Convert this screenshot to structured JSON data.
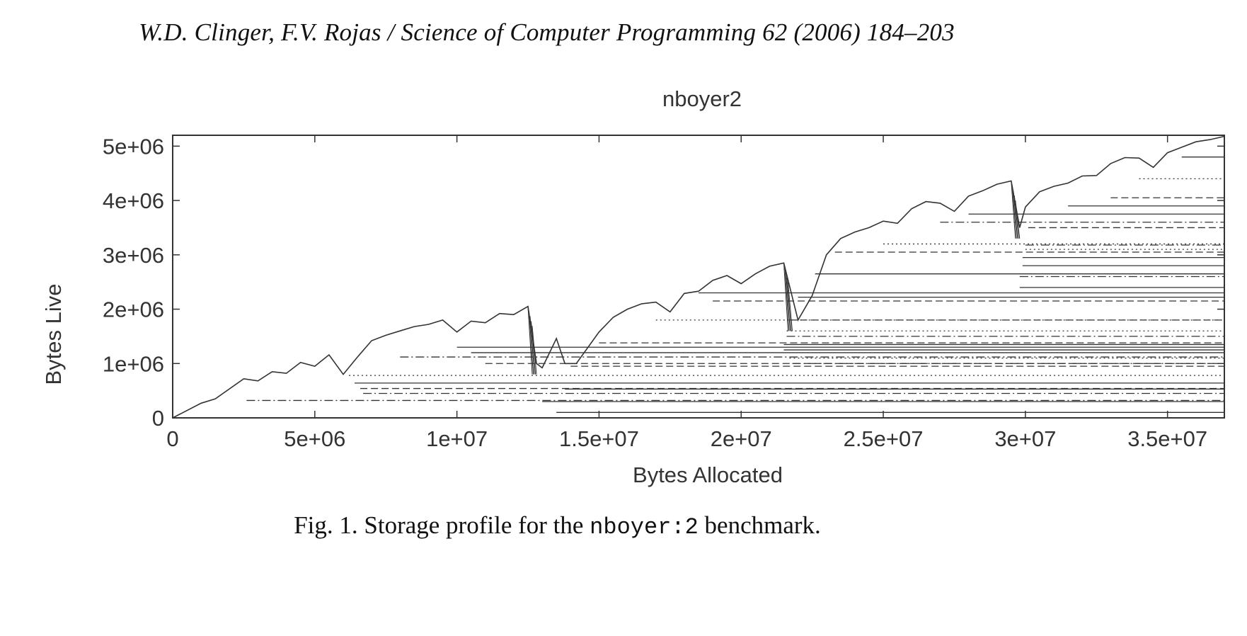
{
  "page": {
    "running_head": "W.D. Clinger, F.V. Rojas / Science of Computer Programming 62 (2006) 184–203",
    "caption": {
      "prefix": "Fig. 1. Storage profile for the ",
      "code": "nboyer:2",
      "suffix": " benchmark."
    }
  },
  "chart_data": {
    "type": "area",
    "title": "nboyer2",
    "xlabel": "Bytes Allocated",
    "ylabel": "Bytes Live",
    "xlim": [
      0,
      37000000
    ],
    "ylim": [
      0,
      5200000
    ],
    "x_ticks": [
      {
        "value": 0,
        "label": "0"
      },
      {
        "value": 5000000,
        "label": "5e+06"
      },
      {
        "value": 10000000,
        "label": "1e+07"
      },
      {
        "value": 15000000,
        "label": "1.5e+07"
      },
      {
        "value": 20000000,
        "label": "2e+07"
      },
      {
        "value": 25000000,
        "label": "2.5e+07"
      },
      {
        "value": 30000000,
        "label": "3e+07"
      },
      {
        "value": 35000000,
        "label": "3.5e+07"
      }
    ],
    "y_ticks": [
      {
        "value": 0,
        "label": "0"
      },
      {
        "value": 1000000,
        "label": "1e+06"
      },
      {
        "value": 2000000,
        "label": "2e+06"
      },
      {
        "value": 3000000,
        "label": "3e+06"
      },
      {
        "value": 4000000,
        "label": "4e+06"
      },
      {
        "value": 5000000,
        "label": "5e+06"
      }
    ],
    "grid": false,
    "legend": "none",
    "line_color": "#333333",
    "total_live": {
      "x": [
        0,
        1000000,
        1500000,
        2500000,
        3000000,
        3500000,
        4000000,
        4500000,
        5000000,
        5500000,
        6000000,
        6500000,
        7000000,
        7500000,
        8000000,
        8500000,
        9000000,
        9500000,
        10000000,
        10500000,
        11000000,
        11500000,
        12000000,
        12500000,
        12800000,
        13000000,
        13500000,
        13800000,
        14200000,
        15000000,
        15500000,
        16000000,
        16500000,
        17000000,
        17500000,
        18000000,
        18500000,
        19000000,
        19500000,
        20000000,
        20500000,
        21000000,
        21500000,
        22000000,
        22500000,
        23000000,
        23500000,
        24000000,
        24500000,
        25000000,
        25500000,
        26000000,
        26500000,
        27000000,
        27500000,
        28000000,
        28500000,
        29000000,
        29500000,
        29800000,
        30000000,
        30500000,
        31000000,
        31500000,
        32000000,
        32500000,
        33000000,
        33500000,
        34000000,
        34500000,
        35000000,
        35500000,
        36000000,
        36500000,
        37000000
      ],
      "y": [
        0,
        270000,
        350000,
        720000,
        680000,
        850000,
        820000,
        1020000,
        950000,
        1160000,
        800000,
        1120000,
        1420000,
        1520000,
        1600000,
        1680000,
        1720000,
        1800000,
        1580000,
        1780000,
        1750000,
        1920000,
        1900000,
        2050000,
        1000000,
        920000,
        1460000,
        1000000,
        1000000,
        1580000,
        1850000,
        2000000,
        2100000,
        2130000,
        1950000,
        2290000,
        2330000,
        2530000,
        2620000,
        2470000,
        2650000,
        2790000,
        2850000,
        1800000,
        2250000,
        3000000,
        3300000,
        3420000,
        3500000,
        3620000,
        3580000,
        3850000,
        3980000,
        3950000,
        3800000,
        4080000,
        4180000,
        4300000,
        4360000,
        3500000,
        3880000,
        4160000,
        4260000,
        4320000,
        4450000,
        4460000,
        4680000,
        4790000,
        4780000,
        4610000,
        4880000,
        4980000,
        5080000,
        5120000,
        5180000
      ]
    },
    "retained_levels": [
      {
        "x_start": 2600000,
        "value": 320000,
        "dash": "dashdot"
      },
      {
        "x_start": 6200000,
        "value": 780000,
        "dash": "dotted"
      },
      {
        "x_start": 6400000,
        "value": 640000,
        "dash": "solid"
      },
      {
        "x_start": 6600000,
        "value": 540000,
        "dash": "dashed"
      },
      {
        "x_start": 6700000,
        "value": 450000,
        "dash": "dashdot"
      },
      {
        "x_start": 8000000,
        "value": 1120000,
        "dash": "dashdot"
      },
      {
        "x_start": 10000000,
        "value": 1300000,
        "dash": "solid"
      },
      {
        "x_start": 10500000,
        "value": 1200000,
        "dash": "solid"
      },
      {
        "x_start": 11000000,
        "value": 1000000,
        "dash": "dashed"
      },
      {
        "x_start": 13000000,
        "value": 300000,
        "dash": "solid"
      },
      {
        "x_start": 13500000,
        "value": 100000,
        "dash": "solid"
      },
      {
        "x_start": 13800000,
        "value": 530000,
        "dash": "solid"
      },
      {
        "x_start": 14000000,
        "value": 950000,
        "dash": "dashed"
      },
      {
        "x_start": 15000000,
        "value": 1380000,
        "dash": "dashed"
      },
      {
        "x_start": 17000000,
        "value": 1800000,
        "dash": "dotted"
      },
      {
        "x_start": 18500000,
        "value": 2300000,
        "dash": "solid"
      },
      {
        "x_start": 19000000,
        "value": 2150000,
        "dash": "dashed"
      },
      {
        "x_start": 21500000,
        "value": 1250000,
        "dash": "solid"
      },
      {
        "x_start": 21500000,
        "value": 1350000,
        "dash": "solid"
      },
      {
        "x_start": 21600000,
        "value": 1500000,
        "dash": "dashdot"
      },
      {
        "x_start": 21600000,
        "value": 1600000,
        "dash": "dotted"
      },
      {
        "x_start": 21700000,
        "value": 1800000,
        "dash": "dashed"
      },
      {
        "x_start": 21700000,
        "value": 1100000,
        "dash": "dotted"
      },
      {
        "x_start": 21800000,
        "value": 1000000,
        "dash": "dashdot"
      },
      {
        "x_start": 22000000,
        "value": 2220000,
        "dash": "solid"
      },
      {
        "x_start": 22600000,
        "value": 2650000,
        "dash": "solid"
      },
      {
        "x_start": 23300000,
        "value": 3050000,
        "dash": "dashed"
      },
      {
        "x_start": 25000000,
        "value": 3200000,
        "dash": "dotted"
      },
      {
        "x_start": 27000000,
        "value": 3600000,
        "dash": "dashdot"
      },
      {
        "x_start": 28000000,
        "value": 3750000,
        "dash": "solid"
      },
      {
        "x_start": 29800000,
        "value": 2400000,
        "dash": "solid"
      },
      {
        "x_start": 29800000,
        "value": 2600000,
        "dash": "dashdot"
      },
      {
        "x_start": 29900000,
        "value": 2800000,
        "dash": "solid"
      },
      {
        "x_start": 29900000,
        "value": 2950000,
        "dash": "solid"
      },
      {
        "x_start": 30000000,
        "value": 3100000,
        "dash": "dotted"
      },
      {
        "x_start": 30000000,
        "value": 3180000,
        "dash": "dashdot"
      },
      {
        "x_start": 30100000,
        "value": 3500000,
        "dash": "dashed"
      },
      {
        "x_start": 31500000,
        "value": 3900000,
        "dash": "solid"
      },
      {
        "x_start": 33000000,
        "value": 4050000,
        "dash": "dashed"
      },
      {
        "x_start": 34000000,
        "value": 4400000,
        "dash": "dotted"
      },
      {
        "x_start": 35500000,
        "value": 4800000,
        "dash": "solid"
      }
    ]
  }
}
